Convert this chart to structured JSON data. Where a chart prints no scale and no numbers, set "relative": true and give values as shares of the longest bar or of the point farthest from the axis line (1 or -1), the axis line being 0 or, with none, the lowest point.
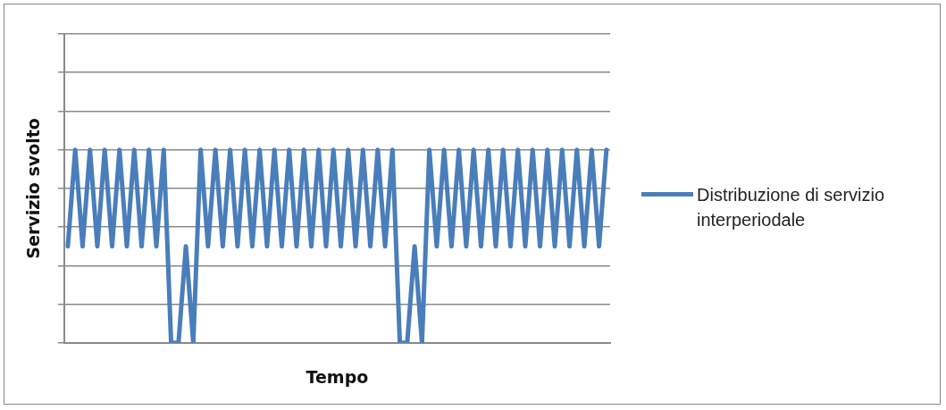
{
  "chart_data": {
    "type": "line",
    "xlabel": "Tempo",
    "ylabel": "Servizio svolto",
    "relative": true,
    "grid": "y",
    "legend": "right",
    "categories": [
      null,
      null,
      null,
      null,
      null,
      null,
      null,
      null,
      null,
      null,
      null,
      null,
      null,
      null,
      null,
      null,
      null,
      null,
      null,
      null,
      null,
      null,
      null,
      null,
      null,
      null,
      null,
      null,
      null,
      null,
      null,
      null,
      null,
      null,
      null,
      null,
      null,
      null,
      null,
      null,
      null,
      null,
      null,
      null,
      null,
      null,
      null,
      null,
      null,
      null,
      null,
      null,
      null,
      null,
      null,
      null,
      null,
      null,
      null,
      null,
      null,
      null,
      null,
      null,
      null,
      null,
      null,
      null,
      null,
      null,
      null,
      null,
      null,
      null
    ],
    "series": [
      {
        "name": "Distribuzione di servizio interperiodale",
        "color": "#4a7ebb",
        "values": [
          0.5,
          1,
          0.5,
          1,
          0.5,
          1,
          0.5,
          1,
          0.5,
          1,
          0.5,
          1,
          0.5,
          1,
          0,
          0,
          0.5,
          0,
          1,
          0.5,
          1,
          0.5,
          1,
          0.5,
          1,
          0.5,
          1,
          0.5,
          1,
          0.5,
          1,
          0.5,
          1,
          0.5,
          1,
          0.5,
          1,
          0.5,
          1,
          0.5,
          1,
          0.5,
          1,
          0.5,
          1,
          0,
          0,
          0.5,
          0,
          1,
          0.5,
          1,
          0.5,
          1,
          0.5,
          1,
          0.5,
          1,
          0.5,
          1,
          0.5,
          1,
          0.5,
          1,
          0.5,
          1,
          0.5,
          1,
          0.5,
          1,
          0.5,
          1,
          0.5,
          1
        ]
      }
    ]
  }
}
